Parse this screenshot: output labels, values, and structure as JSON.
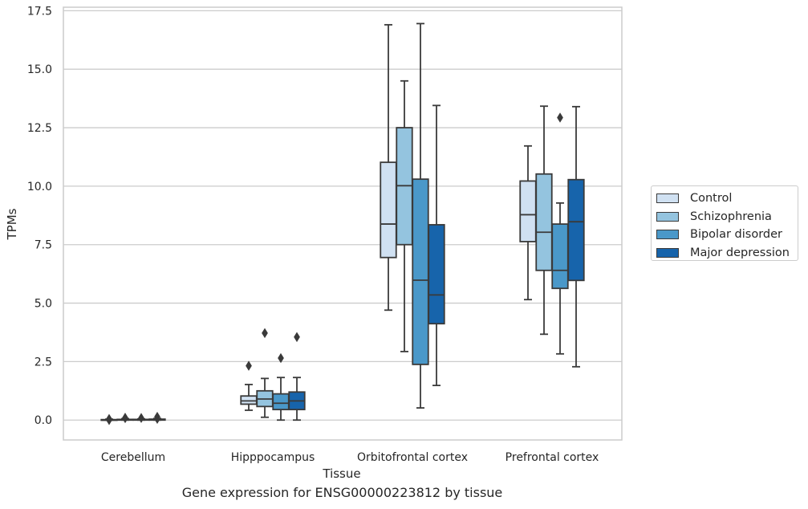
{
  "chart_data": {
    "type": "box",
    "title": "Gene expression for ENSG00000223812 by tissue",
    "xlabel": "Tissue",
    "ylabel": "TPMs",
    "ylim": [
      -0.85,
      17.65
    ],
    "yticks": [
      "0.0",
      "2.5",
      "5.0",
      "7.5",
      "10.0",
      "12.5",
      "15.0",
      "17.5"
    ],
    "grid": "horizontal",
    "legend_position": "right",
    "categories": [
      "Cerebellum",
      "Hipppocampus",
      "Orbitofrontal cortex",
      "Prefrontal cortex"
    ],
    "series": [
      {
        "name": "Control",
        "color": "#d0e1f2",
        "boxes": [
          {
            "whislo": 0.0,
            "q1": 0.0,
            "med": 0.0,
            "q3": 0.02,
            "whishi": 0.04,
            "fliers": [
              0.05,
              0.0
            ]
          },
          {
            "whislo": 0.42,
            "q1": 0.68,
            "med": 0.82,
            "q3": 1.03,
            "whishi": 1.52,
            "fliers": [
              2.32
            ]
          },
          {
            "whislo": 4.7,
            "q1": 6.95,
            "med": 8.38,
            "q3": 11.02,
            "whishi": 16.9,
            "fliers": []
          },
          {
            "whislo": 5.15,
            "q1": 7.63,
            "med": 8.78,
            "q3": 10.22,
            "whishi": 11.72,
            "fliers": []
          }
        ]
      },
      {
        "name": "Schizophrenia",
        "color": "#94c4df",
        "boxes": [
          {
            "whislo": 0.0,
            "q1": 0.0,
            "med": 0.01,
            "q3": 0.03,
            "whishi": 0.06,
            "fliers": [
              0.1,
              0.08
            ]
          },
          {
            "whislo": 0.12,
            "q1": 0.58,
            "med": 0.9,
            "q3": 1.25,
            "whishi": 1.78,
            "fliers": [
              3.72
            ]
          },
          {
            "whislo": 2.93,
            "q1": 7.5,
            "med": 10.02,
            "q3": 12.5,
            "whishi": 14.5,
            "fliers": []
          },
          {
            "whislo": 3.67,
            "q1": 6.4,
            "med": 8.03,
            "q3": 10.52,
            "whishi": 13.42,
            "fliers": []
          }
        ]
      },
      {
        "name": "Bipolar disorder",
        "color": "#4a98c9",
        "boxes": [
          {
            "whislo": 0.0,
            "q1": 0.0,
            "med": 0.01,
            "q3": 0.03,
            "whishi": 0.05,
            "fliers": [
              0.09
            ]
          },
          {
            "whislo": 0.0,
            "q1": 0.45,
            "med": 0.72,
            "q3": 1.12,
            "whishi": 1.82,
            "fliers": [
              2.65
            ]
          },
          {
            "whislo": 0.52,
            "q1": 2.38,
            "med": 5.98,
            "q3": 10.3,
            "whishi": 16.95,
            "fliers": []
          },
          {
            "whislo": 2.83,
            "q1": 5.63,
            "med": 6.4,
            "q3": 8.38,
            "whishi": 9.28,
            "fliers": [
              12.93
            ]
          }
        ]
      },
      {
        "name": "Major depression",
        "color": "#1764ab",
        "boxes": [
          {
            "whislo": 0.0,
            "q1": 0.0,
            "med": 0.02,
            "q3": 0.04,
            "whishi": 0.07,
            "fliers": [
              0.14,
              0.05
            ]
          },
          {
            "whislo": 0.0,
            "q1": 0.45,
            "med": 0.82,
            "q3": 1.2,
            "whishi": 1.82,
            "fliers": [
              3.55
            ]
          },
          {
            "whislo": 1.48,
            "q1": 4.12,
            "med": 5.35,
            "q3": 8.35,
            "whishi": 13.45,
            "fliers": []
          },
          {
            "whislo": 2.28,
            "q1": 5.97,
            "med": 8.48,
            "q3": 10.28,
            "whishi": 13.4,
            "fliers": []
          }
        ]
      }
    ]
  }
}
